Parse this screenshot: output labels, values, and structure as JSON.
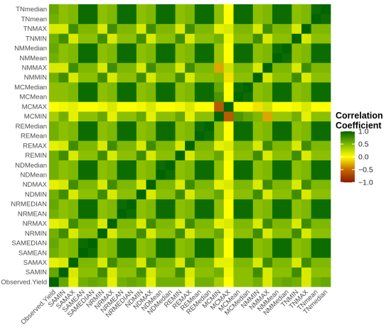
{
  "chart_data": {
    "type": "heatmap",
    "title": "",
    "xlabel": "",
    "ylabel": "",
    "variables": [
      "Observed.Yield",
      "SAMIN",
      "SAMAX",
      "SAMEAN",
      "SAMEDIAN",
      "NRMIN",
      "NRMAX",
      "NRMEAN",
      "NRMEDIAN",
      "NDMIN",
      "NDMAX",
      "NDMean",
      "NDMedian",
      "REMIN",
      "REMAX",
      "REMean",
      "REMedian",
      "MCMIN",
      "MCMAX",
      "MCMean",
      "MCMedian",
      "NMMIN",
      "NMMAX",
      "NMMean",
      "NMMedian",
      "TNMIN",
      "TNMAX",
      "TNmean",
      "TNmedian"
    ],
    "x_labels": [
      "Observed.Yield",
      "SAMIN",
      "SAMAX",
      "SAMEAN",
      "SAMEDIAN",
      "NRMIN",
      "NRMAX",
      "NRMEAN",
      "NRMEDIAN",
      "NDMIN",
      "NDMAX",
      "NDMean",
      "NDMedian",
      "REMIN",
      "REMAX",
      "REMean",
      "REMedian",
      "MCMIN",
      "MCMAX",
      "MCMean",
      "MCMedian",
      "NMMIN",
      "NMMAX",
      "NMMean",
      "NMMedian",
      "TNMIN",
      "TNMAX",
      "TNmean",
      "TNmedian"
    ],
    "y_labels": [
      "Observed.Yield",
      "SAMIN",
      "SAMAX",
      "SAMEAN",
      "SAMEDIAN",
      "NRMIN",
      "NRMAX",
      "NRMEAN",
      "NRMEDIAN",
      "NDMIN",
      "NDMAX",
      "NDMean",
      "NDMedian",
      "REMIN",
      "REMAX",
      "REMean",
      "REMedian",
      "MCMIN",
      "MCMAX",
      "MCMean",
      "MCMedian",
      "NMMIN",
      "NMMAX",
      "NMMean",
      "NMMedian",
      "TNMIN",
      "TNMAX",
      "TNmean",
      "TNmedian"
    ],
    "values_note_omitted": false,
    "group_cross": {
      "MIN-MIN": 0.75,
      "MIN-MAX": 0.15,
      "MIN-CEN": 0.45,
      "MAX-MAX": 0.75,
      "MAX-CEN": 0.5,
      "CEN-CEN": 0.95
    },
    "observed_yield_corr": [
      1.0,
      0.6,
      0.1,
      0.55,
      0.6,
      0.55,
      0.1,
      0.55,
      0.6,
      0.55,
      0.1,
      0.55,
      0.55,
      0.55,
      0.1,
      0.55,
      0.55,
      0.35,
      0.0,
      0.45,
      0.45,
      0.55,
      0.15,
      0.55,
      0.6,
      0.55,
      0.15,
      0.55,
      0.6
    ],
    "mcmin_corr": [
      0.35,
      0.55,
      0.1,
      0.45,
      0.45,
      0.6,
      0.1,
      0.45,
      0.45,
      0.6,
      0.1,
      0.45,
      0.45,
      0.6,
      0.1,
      0.45,
      0.45,
      1.0,
      -0.6,
      0.7,
      0.6,
      0.5,
      -0.3,
      0.4,
      0.4,
      0.55,
      0.1,
      0.45,
      0.45
    ],
    "mcmax_corr": [
      0.0,
      0.05,
      0.1,
      0.0,
      0.0,
      0.05,
      0.15,
      0.0,
      0.0,
      0.05,
      0.15,
      0.0,
      0.0,
      0.05,
      0.15,
      0.0,
      0.0,
      -0.6,
      1.0,
      0.0,
      0.0,
      -0.1,
      0.2,
      0.0,
      0.0,
      0.05,
      0.15,
      0.0,
      0.0
    ],
    "colorscale": {
      "min": -1.0,
      "max": 1.0,
      "stops": [
        {
          "value": -1.0,
          "color": "#8b1a00"
        },
        {
          "value": -0.5,
          "color": "#c46a00"
        },
        {
          "value": 0.0,
          "color": "#ffff00"
        },
        {
          "value": 0.5,
          "color": "#7fb800"
        },
        {
          "value": 1.0,
          "color": "#006400"
        }
      ]
    },
    "legend": {
      "title_line1": "Correlation",
      "title_line2": "Coefficient",
      "ticks": [
        {
          "value": 1.0,
          "label": "1.0"
        },
        {
          "value": 0.5,
          "label": "0.5"
        },
        {
          "value": 0.0,
          "label": "0.0"
        },
        {
          "value": -0.5,
          "label": "−0.5"
        },
        {
          "value": -1.0,
          "label": "−1.0"
        }
      ],
      "placement": "right"
    },
    "grid": false
  }
}
